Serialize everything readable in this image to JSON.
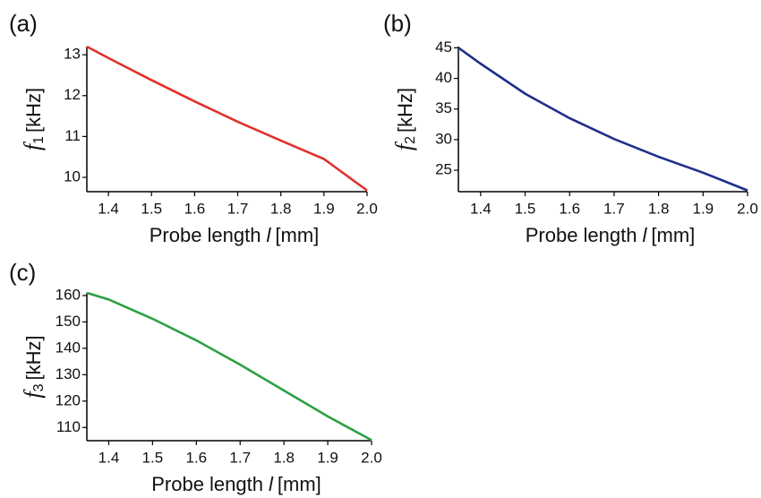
{
  "chart_data": [
    {
      "type": "line",
      "panel_label": "(a)",
      "x_label": {
        "text": "Probe length",
        "symbol": "l",
        "unit": "[mm]"
      },
      "y_label": {
        "symbol": "f",
        "subscript": "1",
        "unit": "[kHz]"
      },
      "x": [
        1.35,
        1.4,
        1.5,
        1.6,
        1.7,
        1.8,
        1.9,
        2.0
      ],
      "series": [
        {
          "color": "#e0312b",
          "values": [
            13.2,
            12.92,
            12.38,
            11.86,
            11.36,
            10.9,
            10.45,
            9.68
          ]
        }
      ],
      "xlim": [
        1.35,
        2.0
      ],
      "xticks": [
        1.4,
        1.5,
        1.6,
        1.7,
        1.8,
        1.9,
        {
          "value": 2,
          "label": "2.0"
        }
      ],
      "ylim": [
        9.65,
        13.2
      ],
      "yticks": [
        10,
        11,
        12,
        13
      ]
    },
    {
      "type": "line",
      "panel_label": "(b)",
      "x_label": {
        "text": "Probe length",
        "symbol": "l",
        "unit": "[mm]"
      },
      "y_label": {
        "symbol": "f",
        "subscript": "2",
        "unit": "[kHz]"
      },
      "x": [
        1.35,
        1.4,
        1.5,
        1.6,
        1.7,
        1.8,
        1.9,
        2.0
      ],
      "series": [
        {
          "color": "#1f2f8c",
          "values": [
            45,
            42.4,
            37.5,
            33.5,
            30.1,
            27.2,
            24.6,
            21.7
          ]
        }
      ],
      "xlim": [
        1.35,
        2.0
      ],
      "xticks": [
        1.4,
        1.5,
        1.6,
        1.7,
        1.8,
        1.9,
        {
          "value": 2,
          "label": "2.0"
        }
      ],
      "ylim": [
        21.5,
        45.2
      ],
      "yticks": [
        25,
        30,
        35,
        40,
        45
      ]
    },
    {
      "type": "line",
      "panel_label": "(c)",
      "x_label": {
        "text": "Probe length",
        "symbol": "l",
        "unit": "[mm]"
      },
      "y_label": {
        "symbol": "f",
        "subscript": "3",
        "unit": "[kHz]"
      },
      "x": [
        1.35,
        1.4,
        1.5,
        1.6,
        1.7,
        1.8,
        1.9,
        2.0
      ],
      "series": [
        {
          "color": "#2ca043",
          "values": [
            161,
            158.5,
            151.2,
            143,
            133.8,
            124,
            114.2,
            105.2
          ]
        }
      ],
      "xlim": [
        1.35,
        2.0
      ],
      "xticks": [
        1.4,
        1.5,
        1.6,
        1.7,
        1.8,
        1.9,
        {
          "value": 2,
          "label": "2.0"
        }
      ],
      "ylim": [
        105,
        161
      ],
      "yticks": [
        110,
        120,
        130,
        140,
        150,
        160
      ]
    }
  ]
}
